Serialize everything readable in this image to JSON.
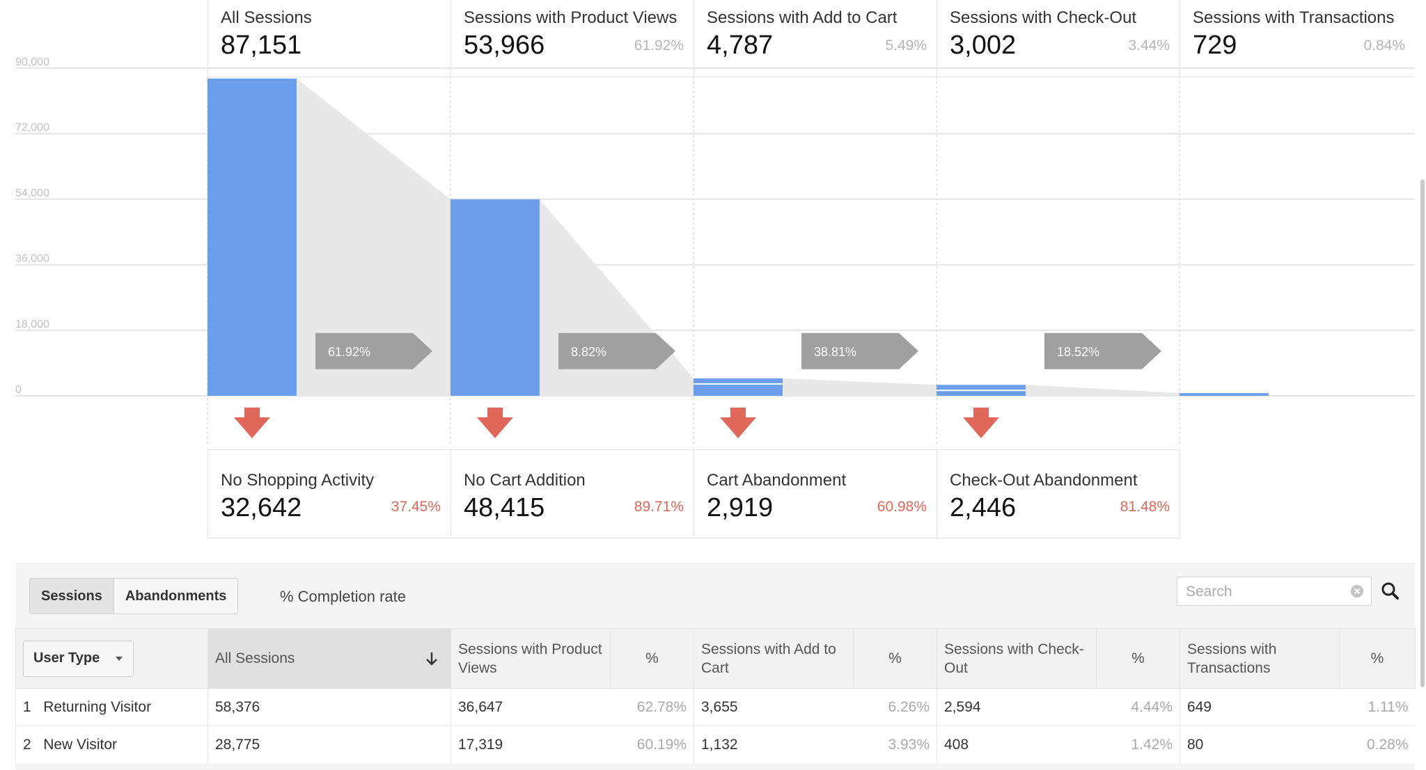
{
  "stages": [
    {
      "label": "All Sessions",
      "value": "87,151",
      "pct": ""
    },
    {
      "label": "Sessions with Product Views",
      "value": "53,966",
      "pct": "61.92%"
    },
    {
      "label": "Sessions with Add to Cart",
      "value": "4,787",
      "pct": "5.49%"
    },
    {
      "label": "Sessions with Check-Out",
      "value": "3,002",
      "pct": "3.44%"
    },
    {
      "label": "Sessions with Transactions",
      "value": "729",
      "pct": "0.84%"
    }
  ],
  "abandonments": [
    {
      "label": "No Shopping Activity",
      "value": "32,642",
      "pct": "37.45%"
    },
    {
      "label": "No Cart Addition",
      "value": "48,415",
      "pct": "89.71%"
    },
    {
      "label": "Cart Abandonment",
      "value": "2,919",
      "pct": "60.98%"
    },
    {
      "label": "Check-Out Abandonment",
      "value": "2,446",
      "pct": "81.48%"
    }
  ],
  "chart_data": {
    "type": "bar",
    "categories": [
      "All Sessions",
      "Sessions with Product Views",
      "Sessions with Add to Cart",
      "Sessions with Check-Out",
      "Sessions with Transactions"
    ],
    "values": [
      87151,
      53966,
      4787,
      3002,
      729
    ],
    "ylim": [
      0,
      90000
    ],
    "yticks": [
      "90,000",
      "72,000",
      "54,000",
      "36,000",
      "18,000",
      "0"
    ],
    "ytick_values": [
      90000,
      72000,
      54000,
      36000,
      18000,
      0
    ],
    "conversion_labels": [
      "61.92%",
      "8.82%",
      "38.81%",
      "18.52%"
    ],
    "grid": true,
    "colors": {
      "bar": "#6d9eeb",
      "funnel": "#e8e8e8",
      "arrow": "#a0a0a0",
      "drop": "#e0685a"
    }
  },
  "table": {
    "toggle": {
      "sessions": "Sessions",
      "abandonments": "Abandonments"
    },
    "completion_label": "% Completion rate",
    "search": {
      "placeholder": "Search"
    },
    "dimension_label": "User Type",
    "headers": {
      "all_sessions": "All Sessions",
      "product_views": "Sessions with Product Views",
      "add_to_cart": "Sessions with Add to Cart",
      "check_out": "Sessions with Check-Out",
      "transactions": "Sessions with Transactions",
      "pct": "%"
    },
    "rows": [
      {
        "index": "1",
        "name": "Returning Visitor",
        "all": "58,376",
        "pv": "36,647",
        "pv_pct": "62.78%",
        "atc": "3,655",
        "atc_pct": "6.26%",
        "co": "2,594",
        "co_pct": "4.44%",
        "tx": "649",
        "tx_pct": "1.11%"
      },
      {
        "index": "2",
        "name": "New Visitor",
        "all": "28,775",
        "pv": "17,319",
        "pv_pct": "60.19%",
        "atc": "1,132",
        "atc_pct": "3.93%",
        "co": "408",
        "co_pct": "1.42%",
        "tx": "80",
        "tx_pct": "0.28%"
      }
    ]
  }
}
